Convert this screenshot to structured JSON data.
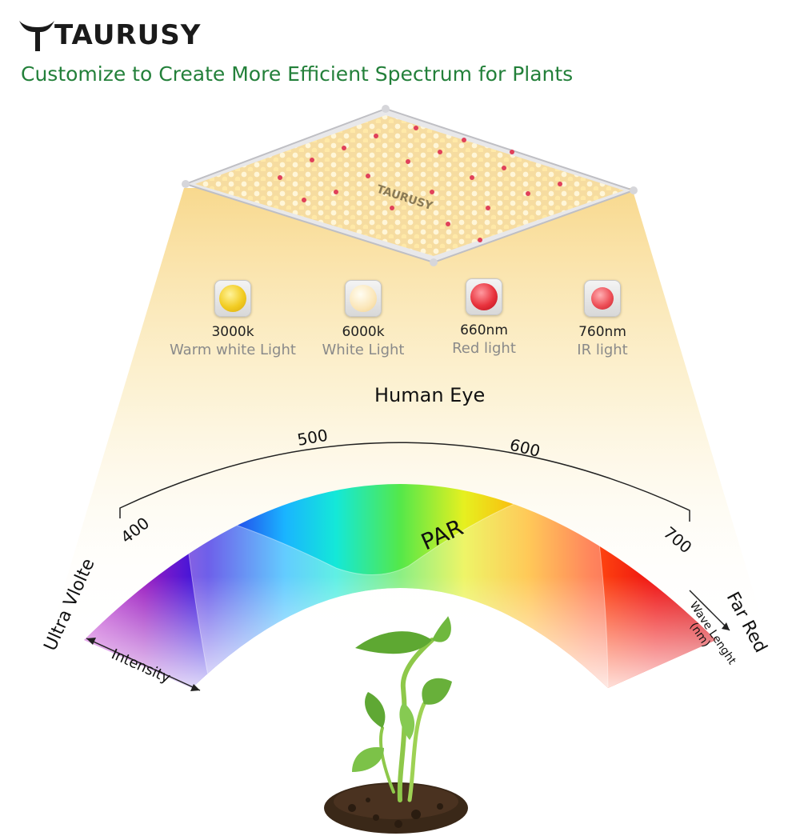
{
  "brand": {
    "name": "TAURUSY",
    "panel_logo": "TAURUSY"
  },
  "headline": "Customize to Create More Efficient Spectrum for Plants",
  "leds": [
    {
      "code": "3000k",
      "desc": "Warm white Light",
      "color": "#f2cc22"
    },
    {
      "code": "6000k",
      "desc": "White Light",
      "color": "#fbe6b8"
    },
    {
      "code": "660nm",
      "desc": "Red light",
      "color": "#e8323c"
    },
    {
      "code": "760nm",
      "desc": "IR light",
      "color": "#ee5058"
    }
  ],
  "spectrum": {
    "human_eye": "Human Eye",
    "par": "PAR",
    "ticks": [
      "400",
      "500",
      "600",
      "700"
    ],
    "left_label": "Ultra Vlolte",
    "right_label": "Far Red",
    "intensity_label": "Intensity",
    "wavelength_label": "Wave Lenght",
    "wavelength_unit": "(nm)"
  },
  "icons": {
    "logo": "bull-horns-logo-icon",
    "arrow_left": "arrow-left-icon",
    "arrow_right": "arrow-right-icon"
  },
  "colors": {
    "headline": "#23803a",
    "beam": "#fbe39a"
  }
}
